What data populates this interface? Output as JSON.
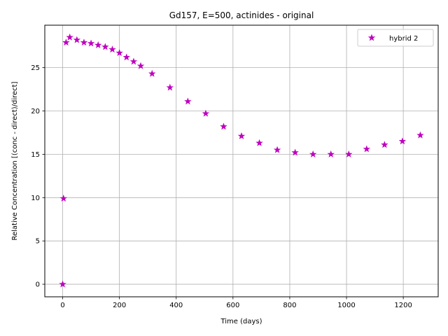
{
  "chart_data": {
    "type": "scatter",
    "title": "Gd157, E=500, actinides - original",
    "xlabel": "Time (days)",
    "ylabel": "Relative Concentration [(conc - direct)/direct]",
    "xlim": [
      -63,
      1323
    ],
    "ylim": [
      -1.45,
      29.9
    ],
    "xticks": [
      0,
      200,
      400,
      600,
      800,
      1000,
      1200
    ],
    "yticks": [
      0,
      5,
      10,
      15,
      20,
      25
    ],
    "grid": true,
    "legend": "top-right",
    "series": [
      {
        "name": "hybrid 2",
        "marker": "star",
        "color": "#bf00bf",
        "points": [
          [
            0,
            0.0
          ],
          [
            3,
            9.9
          ],
          [
            12,
            27.9
          ],
          [
            25,
            28.5
          ],
          [
            50,
            28.2
          ],
          [
            75,
            27.9
          ],
          [
            100,
            27.8
          ],
          [
            125,
            27.6
          ],
          [
            150,
            27.4
          ],
          [
            175,
            27.1
          ],
          [
            200,
            26.7
          ],
          [
            225,
            26.2
          ],
          [
            250,
            25.7
          ],
          [
            275,
            25.2
          ],
          [
            315,
            24.3
          ],
          [
            378,
            22.7
          ],
          [
            441,
            21.1
          ],
          [
            504,
            19.7
          ],
          [
            567,
            18.2
          ],
          [
            630,
            17.1
          ],
          [
            693,
            16.3
          ],
          [
            756,
            15.5
          ],
          [
            819,
            15.2
          ],
          [
            882,
            15.0
          ],
          [
            945,
            15.0
          ],
          [
            1008,
            15.0
          ],
          [
            1071,
            15.6
          ],
          [
            1134,
            16.1
          ],
          [
            1197,
            16.5
          ],
          [
            1260,
            17.2
          ]
        ]
      }
    ]
  }
}
